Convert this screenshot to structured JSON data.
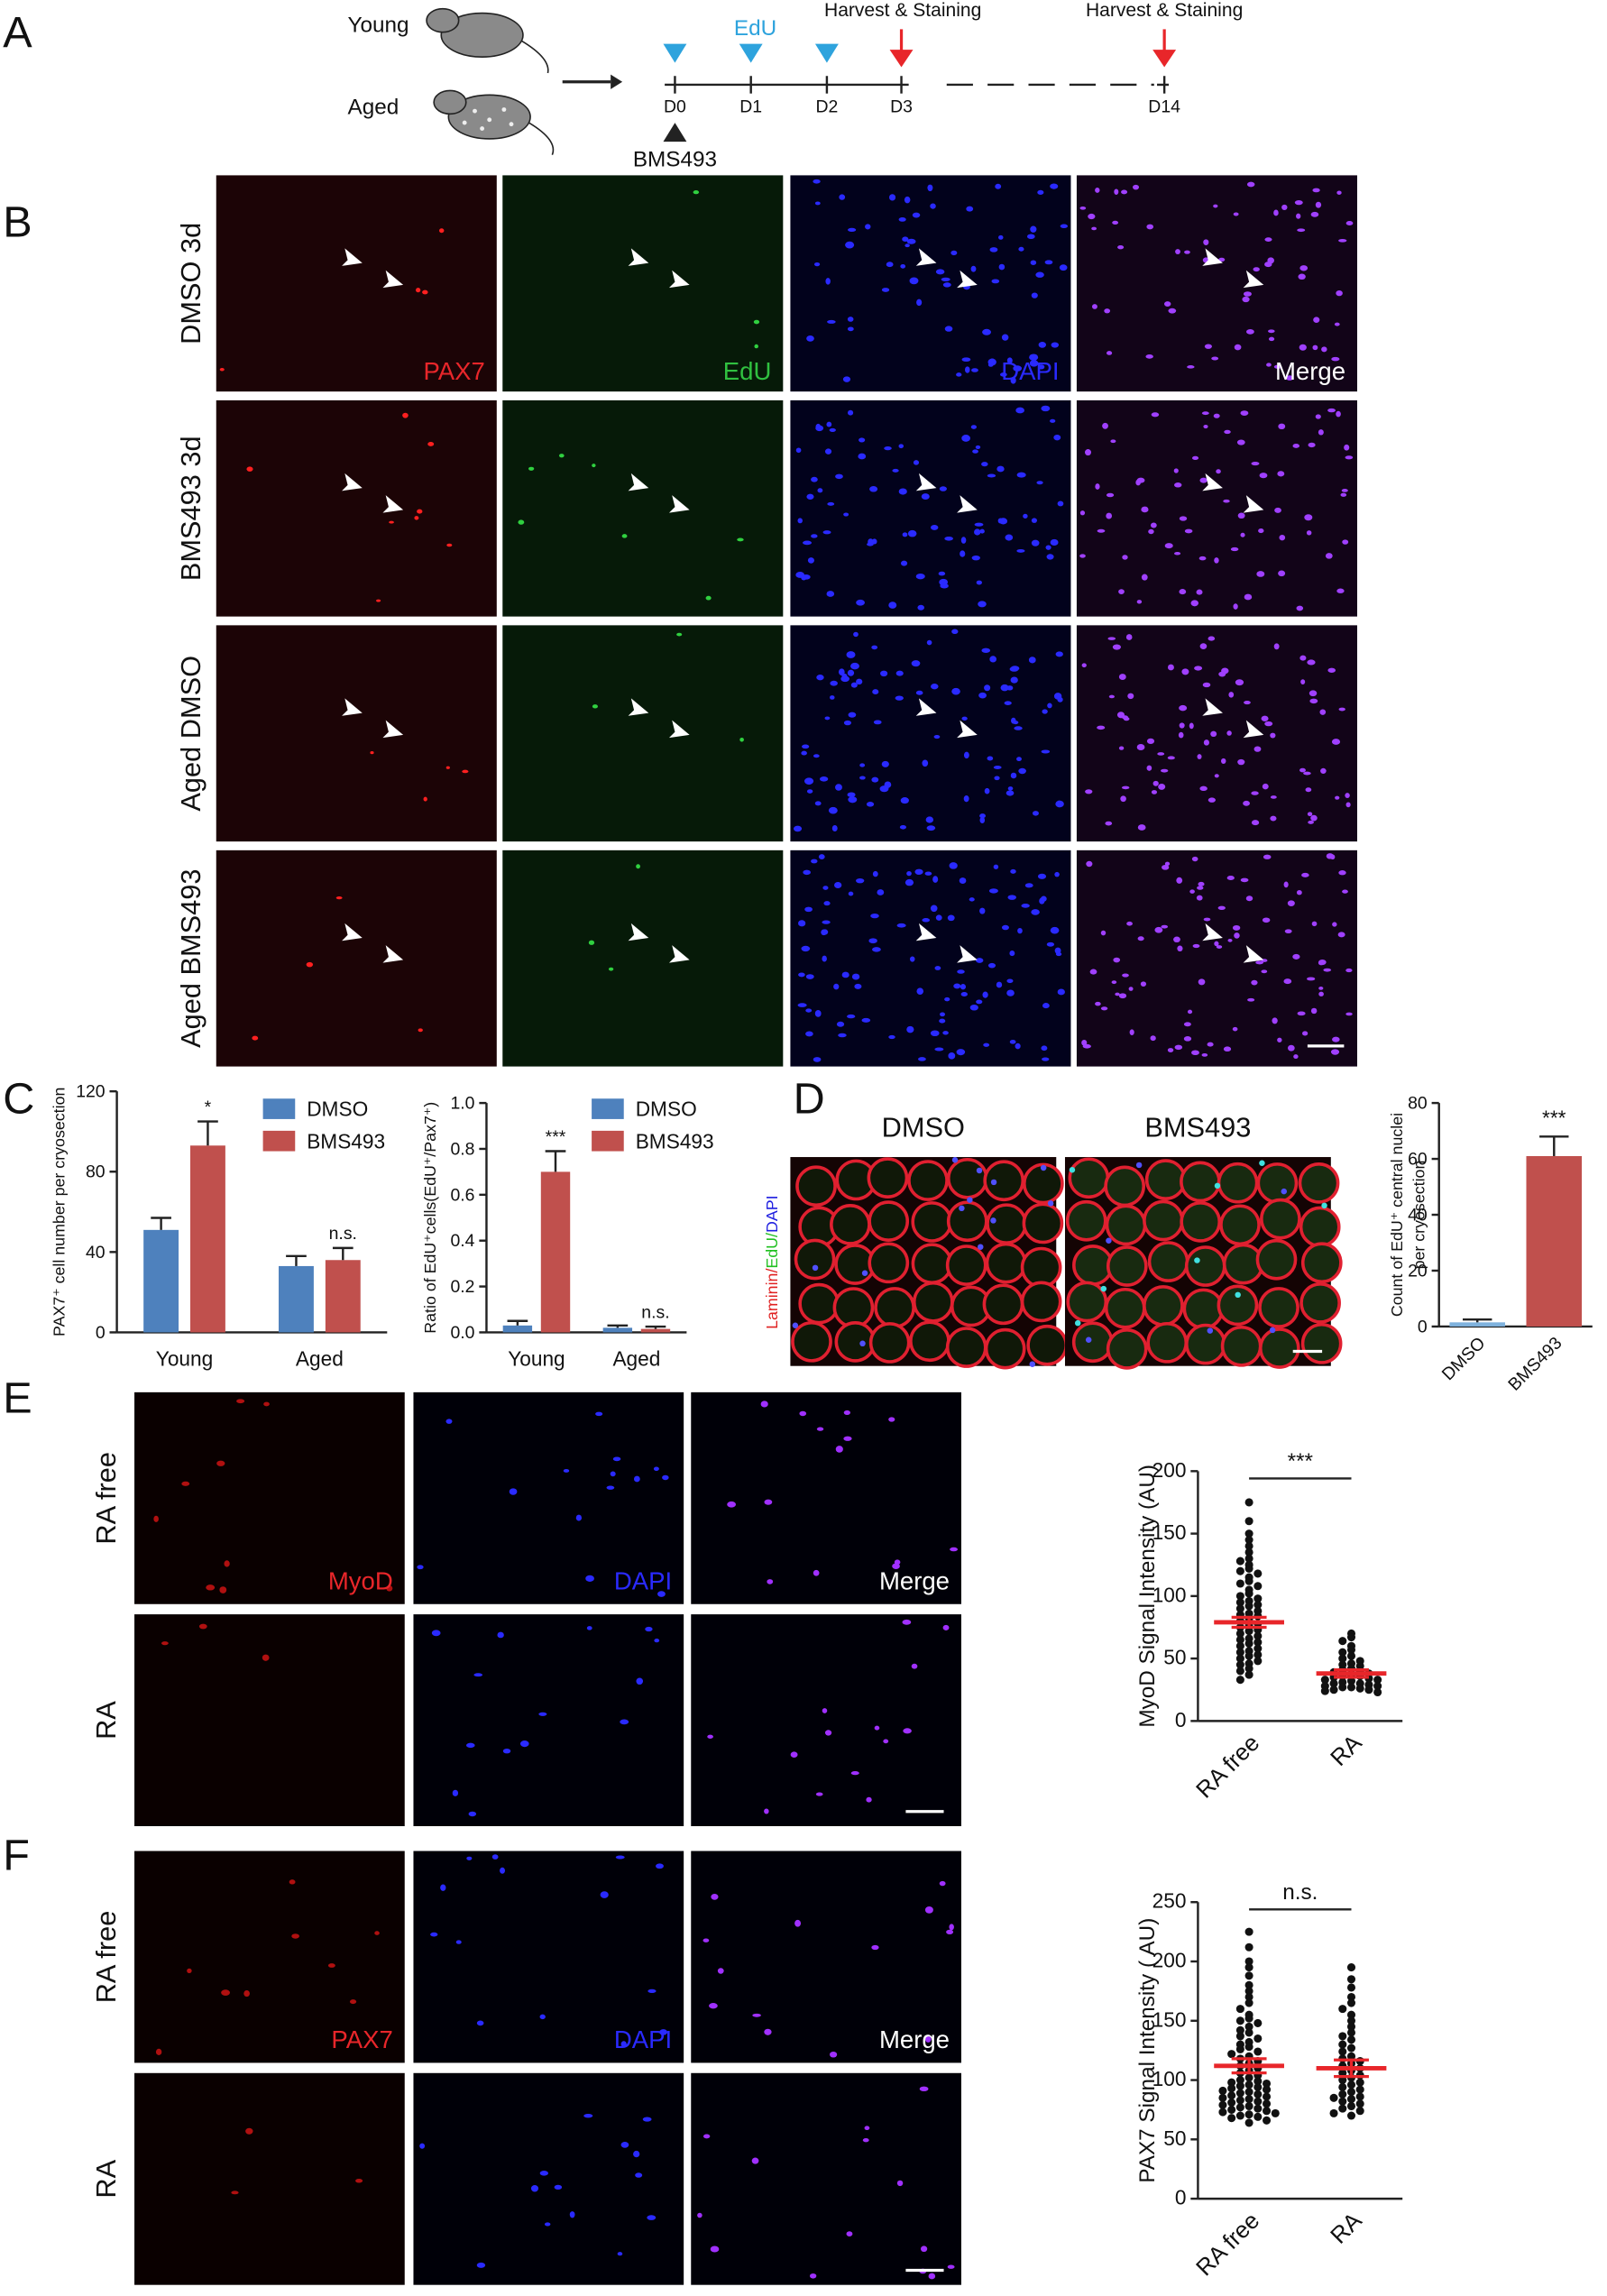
{
  "panel_letters": [
    "A",
    "B",
    "C",
    "D",
    "E",
    "F"
  ],
  "schematic": {
    "groups": [
      "Young",
      "Aged"
    ],
    "edu": "EdU",
    "harvest": [
      "Harvest & Staining",
      "Harvest & Staining"
    ],
    "days": [
      "D0",
      "D1",
      "D2",
      "D3",
      "D14"
    ],
    "drug": "BMS493"
  },
  "panel_b": {
    "rows": [
      "DMSO 3d",
      "BMS493 3d",
      "Aged DMSO",
      "Aged BMS493"
    ],
    "channels": [
      "PAX7",
      "EdU",
      "DAPI",
      "Merge"
    ]
  },
  "panel_d": {
    "conditions": [
      "DMSO",
      "BMS493"
    ],
    "stain": [
      "Laminin/",
      "EdU/",
      "DAPI"
    ]
  },
  "panel_e": {
    "rows": [
      "RA free",
      "RA"
    ],
    "channels": [
      "MyoD",
      "DAPI",
      "Merge"
    ]
  },
  "panel_f": {
    "rows": [
      "RA free",
      "RA"
    ],
    "channels": [
      "PAX7",
      "DAPI",
      "Merge"
    ]
  },
  "chart_data": [
    {
      "type": "bar",
      "ylabel": "PAX7⁺ cell number per cryosection",
      "categories": [
        "Young",
        "Aged"
      ],
      "series": [
        {
          "name": "DMSO",
          "color": "#4e81bd",
          "values": [
            51,
            33
          ],
          "errors": [
            6,
            5
          ]
        },
        {
          "name": "BMS493",
          "color": "#c0504d",
          "values": [
            93,
            36
          ],
          "errors": [
            12,
            6
          ]
        }
      ],
      "annotations": [
        "*",
        "n.s."
      ],
      "ylim": [
        0,
        120
      ],
      "yticks": [
        0,
        40,
        80,
        120
      ]
    },
    {
      "type": "bar",
      "ylabel": "Ratio of EdU⁺cells(EdU⁺/Pax7⁺)",
      "categories": [
        "Young",
        "Aged"
      ],
      "series": [
        {
          "name": "DMSO",
          "color": "#4e81bd",
          "values": [
            0.03,
            0.02
          ],
          "errors": [
            0.02,
            0.01
          ]
        },
        {
          "name": "BMS493",
          "color": "#c0504d",
          "values": [
            0.7,
            0.015
          ],
          "errors": [
            0.09,
            0.01
          ]
        }
      ],
      "annotations": [
        "***",
        "n.s."
      ],
      "ylim": [
        0,
        1
      ],
      "yticks": [
        {
          "value": 0,
          "label": "0.0"
        },
        0.2,
        0.4,
        0.6,
        0.8,
        {
          "value": 1,
          "label": "1.0"
        }
      ]
    },
    {
      "type": "bar",
      "ylabel": [
        "Count of EdU⁺ central nuclei",
        "per cryosection"
      ],
      "categories": [
        "DMSO",
        "BMS493"
      ],
      "values": [
        1.5,
        61
      ],
      "errors": [
        1,
        7
      ],
      "colors": [
        "#7fb2dd",
        "#c0504d"
      ],
      "annotations": [
        null,
        "***"
      ],
      "ylim": [
        0,
        80
      ],
      "yticks": [
        0,
        20,
        40,
        60,
        80
      ]
    },
    {
      "type": "strip",
      "ylabel": "MyoD Signal Intensity (AU)",
      "categories": [
        "RA free",
        "RA"
      ],
      "points": [
        [
          175,
          160,
          150,
          145,
          140,
          135,
          130,
          128,
          125,
          122,
          120,
          118,
          115,
          112,
          110,
          108,
          105,
          102,
          100,
          98,
          96,
          95,
          93,
          92,
          90,
          88,
          86,
          85,
          84,
          82,
          80,
          78,
          76,
          75,
          73,
          72,
          70,
          68,
          66,
          65,
          63,
          62,
          60,
          58,
          56,
          55,
          53,
          52,
          50,
          48,
          46,
          45,
          42,
          40,
          37,
          33
        ],
        [
          70,
          67,
          64,
          60,
          57,
          55,
          52,
          50,
          48,
          46,
          45,
          44,
          42,
          41,
          40,
          39,
          38,
          37,
          36,
          36,
          35,
          34,
          33,
          33,
          32,
          31,
          30,
          30,
          29,
          28,
          28,
          27,
          27,
          26,
          25,
          25,
          24,
          23
        ]
      ],
      "means": [
        79,
        38
      ],
      "errors": [
        4,
        3
      ],
      "color": "#e8262a",
      "annotation": "***",
      "ylim": [
        0,
        200
      ],
      "yticks": [
        0,
        50,
        100,
        150,
        200
      ]
    },
    {
      "type": "strip",
      "ylabel": "PAX7  Signal Intensity ( AU)",
      "categories": [
        "RA free",
        "RA"
      ],
      "points": [
        [
          225,
          212,
          200,
          195,
          188,
          180,
          175,
          170,
          165,
          160,
          155,
          152,
          150,
          148,
          145,
          142,
          140,
          137,
          135,
          132,
          130,
          128,
          126,
          124,
          122,
          120,
          118,
          116,
          114,
          112,
          110,
          108,
          106,
          104,
          102,
          100,
          99,
          98,
          97,
          96,
          95,
          94,
          93,
          92,
          91,
          90,
          89,
          88,
          87,
          86,
          85,
          84,
          83,
          82,
          81,
          80,
          79,
          78,
          77,
          76,
          75,
          74,
          73,
          72,
          71,
          70,
          69,
          68,
          66,
          64
        ],
        [
          195,
          185,
          178,
          170,
          165,
          160,
          155,
          150,
          145,
          140,
          137,
          134,
          130,
          127,
          124,
          120,
          118,
          116,
          114,
          112,
          110,
          108,
          106,
          104,
          102,
          100,
          98,
          96,
          94,
          92,
          90,
          88,
          86,
          85,
          84,
          82,
          80,
          78,
          76,
          74,
          72,
          70
        ]
      ],
      "means": [
        112,
        110
      ],
      "errors": [
        6,
        7
      ],
      "color": "#e8262a",
      "annotation": "n.s.",
      "ylim": [
        0,
        250
      ],
      "yticks": [
        0,
        50,
        100,
        150,
        200,
        250
      ]
    }
  ]
}
